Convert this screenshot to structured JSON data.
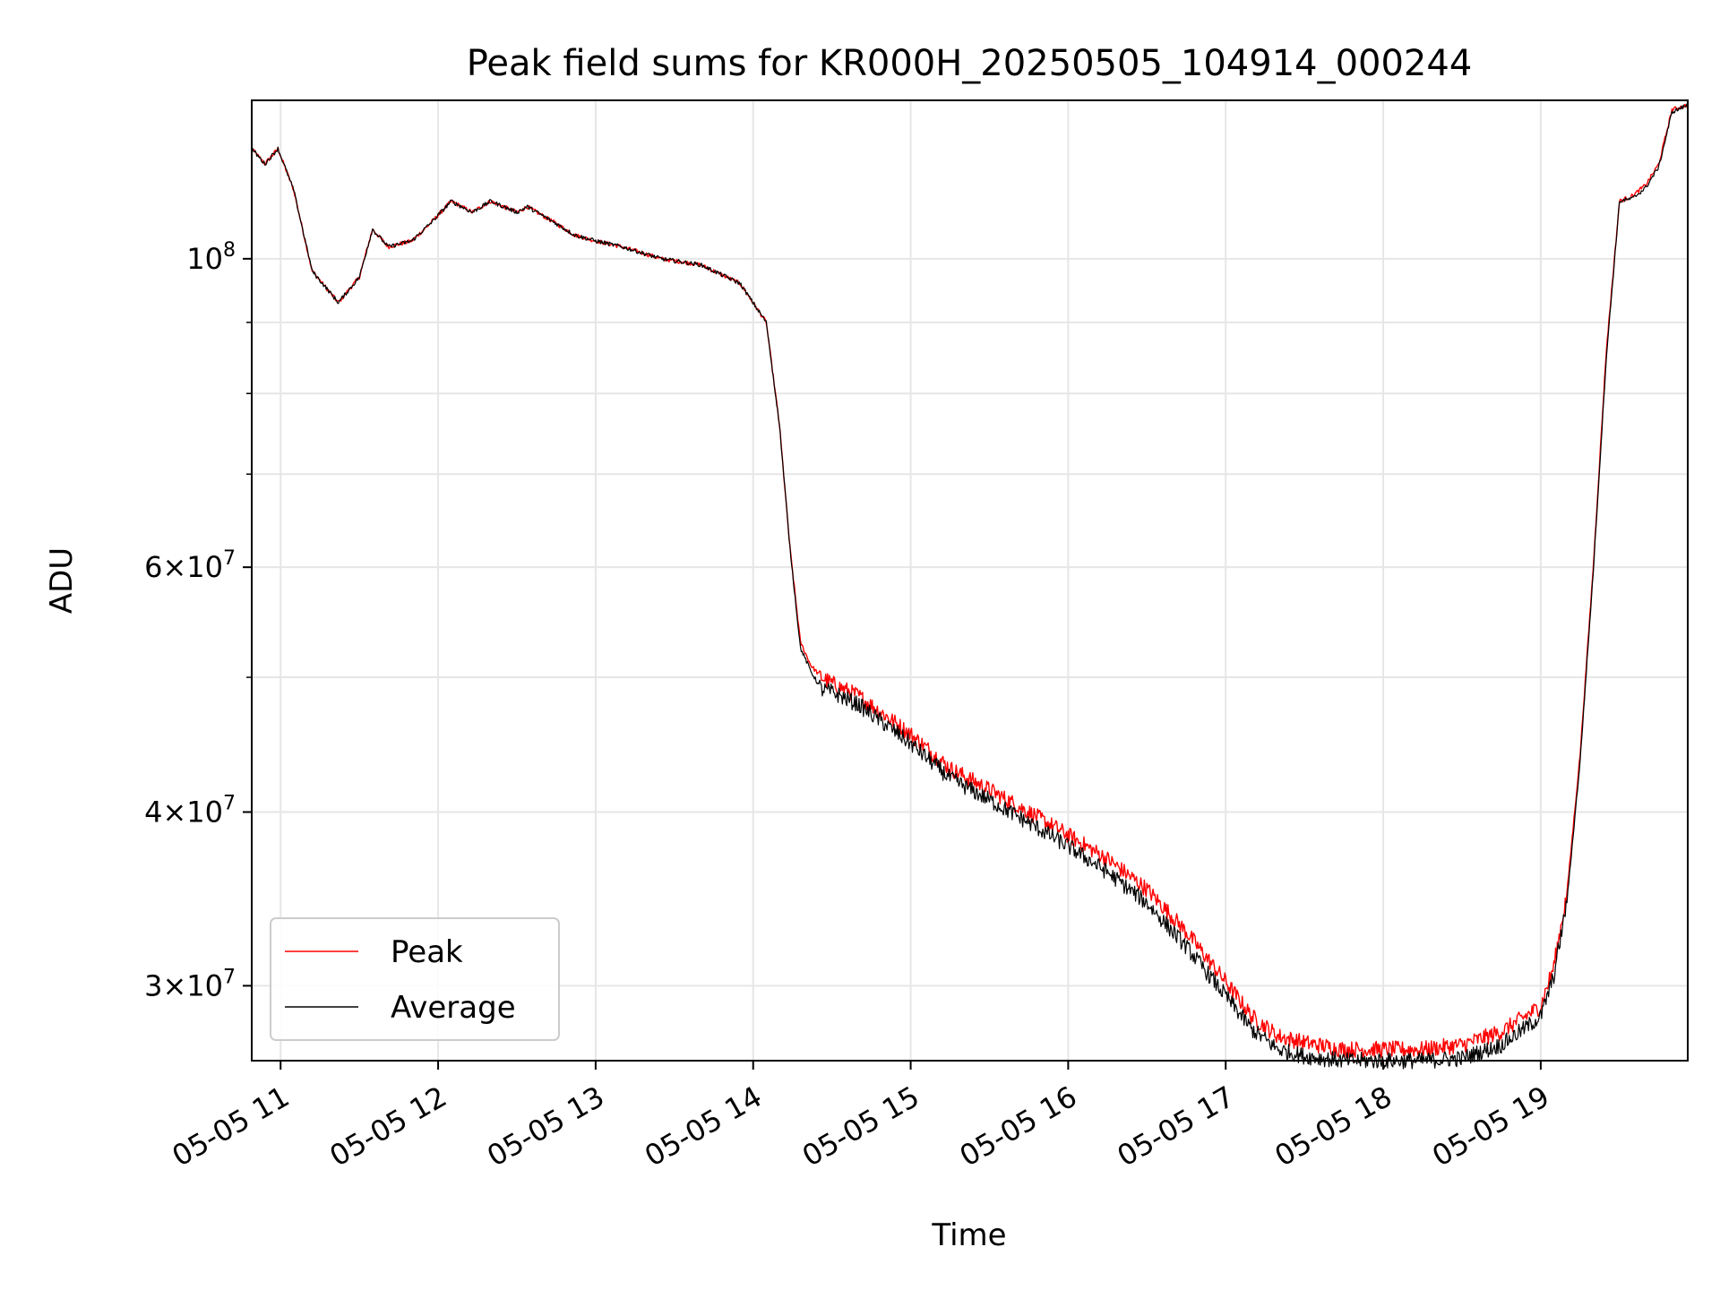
{
  "chart_data": {
    "type": "line",
    "title": "Peak field sums for KR000H_20250505_104914_000244",
    "xlabel": "Time",
    "ylabel": "ADU",
    "yscale": "log",
    "xlim": [
      "2025-05-05 10:49",
      "2025-05-05 19:56"
    ],
    "ylim": [
      26500000,
      130000000
    ],
    "x_ticks": [
      "05-05 11",
      "05-05 12",
      "05-05 13",
      "05-05 14",
      "05-05 15",
      "05-05 16",
      "05-05 17",
      "05-05 18",
      "05-05 19"
    ],
    "y_tick_values": [
      30000000,
      40000000,
      60000000,
      100000000
    ],
    "y_ticks": [
      {
        "base": "3",
        "exp": "7"
      },
      {
        "base": "4",
        "exp": "7"
      },
      {
        "base": "6",
        "exp": "7"
      },
      {
        "base": "",
        "exp": "8"
      }
    ],
    "y_minor_tick_values": [
      50000000,
      70000000,
      80000000,
      90000000
    ],
    "grid": true,
    "legend_position": "lower-left",
    "series": [
      {
        "name": "Peak",
        "color": "#ff0000",
        "x": [
          "2025-05-05 10:49",
          "2025-05-05 10:54",
          "2025-05-05 10:59",
          "2025-05-05 11:05",
          "2025-05-05 11:12",
          "2025-05-05 11:22",
          "2025-05-05 11:30",
          "2025-05-05 11:35",
          "2025-05-05 11:41",
          "2025-05-05 11:50",
          "2025-05-05 11:57",
          "2025-05-05 12:05",
          "2025-05-05 12:13",
          "2025-05-05 12:20",
          "2025-05-05 12:30",
          "2025-05-05 12:34",
          "2025-05-05 12:45",
          "2025-05-05 12:52",
          "2025-05-05 13:00",
          "2025-05-05 13:10",
          "2025-05-05 13:25",
          "2025-05-05 13:40",
          "2025-05-05 13:55",
          "2025-05-05 14:05",
          "2025-05-05 14:10",
          "2025-05-05 14:14",
          "2025-05-05 14:18",
          "2025-05-05 14:22",
          "2025-05-05 14:26",
          "2025-05-05 14:30",
          "2025-05-05 14:40",
          "2025-05-05 14:50",
          "2025-05-05 15:00",
          "2025-05-05 15:15",
          "2025-05-05 15:30",
          "2025-05-05 15:45",
          "2025-05-05 16:00",
          "2025-05-05 16:15",
          "2025-05-05 16:30",
          "2025-05-05 16:45",
          "2025-05-05 17:00",
          "2025-05-05 17:10",
          "2025-05-05 17:20",
          "2025-05-05 17:30",
          "2025-05-05 17:45",
          "2025-05-05 18:00",
          "2025-05-05 18:15",
          "2025-05-05 18:30",
          "2025-05-05 18:45",
          "2025-05-05 19:00",
          "2025-05-05 19:05",
          "2025-05-05 19:10",
          "2025-05-05 19:15",
          "2025-05-05 19:20",
          "2025-05-05 19:25",
          "2025-05-05 19:30",
          "2025-05-05 19:35",
          "2025-05-05 19:40",
          "2025-05-05 19:45",
          "2025-05-05 19:50",
          "2025-05-05 19:56"
        ],
        "values": [
          120000000,
          117000000,
          120000000,
          112000000,
          98000000,
          93000000,
          97000000,
          105000000,
          102000000,
          103000000,
          106000000,
          110000000,
          108000000,
          110000000,
          108000000,
          109000000,
          106000000,
          104000000,
          103000000,
          102000000,
          100000000,
          99000000,
          96000000,
          90000000,
          76000000,
          62000000,
          53000000,
          51000000,
          50000000,
          49500000,
          48500000,
          47000000,
          45500000,
          43000000,
          41500000,
          40000000,
          38500000,
          37000000,
          35200000,
          32800000,
          30200000,
          28500000,
          27600000,
          27300000,
          27000000,
          27000000,
          27000000,
          27200000,
          27800000,
          29000000,
          31000000,
          35000000,
          44000000,
          60000000,
          86000000,
          110000000,
          111000000,
          113000000,
          117000000,
          128000000,
          129000000
        ]
      },
      {
        "name": "Average",
        "color": "#000000",
        "x": [
          "2025-05-05 10:49",
          "2025-05-05 10:54",
          "2025-05-05 10:59",
          "2025-05-05 11:05",
          "2025-05-05 11:12",
          "2025-05-05 11:22",
          "2025-05-05 11:30",
          "2025-05-05 11:35",
          "2025-05-05 11:41",
          "2025-05-05 11:50",
          "2025-05-05 11:57",
          "2025-05-05 12:05",
          "2025-05-05 12:13",
          "2025-05-05 12:20",
          "2025-05-05 12:30",
          "2025-05-05 12:34",
          "2025-05-05 12:45",
          "2025-05-05 12:52",
          "2025-05-05 13:00",
          "2025-05-05 13:10",
          "2025-05-05 13:25",
          "2025-05-05 13:40",
          "2025-05-05 13:55",
          "2025-05-05 14:05",
          "2025-05-05 14:10",
          "2025-05-05 14:14",
          "2025-05-05 14:18",
          "2025-05-05 14:22",
          "2025-05-05 14:26",
          "2025-05-05 14:30",
          "2025-05-05 14:40",
          "2025-05-05 14:50",
          "2025-05-05 15:00",
          "2025-05-05 15:15",
          "2025-05-05 15:30",
          "2025-05-05 15:45",
          "2025-05-05 16:00",
          "2025-05-05 16:15",
          "2025-05-05 16:30",
          "2025-05-05 16:45",
          "2025-05-05 17:00",
          "2025-05-05 17:10",
          "2025-05-05 17:20",
          "2025-05-05 17:30",
          "2025-05-05 17:45",
          "2025-05-05 18:00",
          "2025-05-05 18:15",
          "2025-05-05 18:30",
          "2025-05-05 18:45",
          "2025-05-05 19:00",
          "2025-05-05 19:05",
          "2025-05-05 19:10",
          "2025-05-05 19:15",
          "2025-05-05 19:20",
          "2025-05-05 19:25",
          "2025-05-05 19:30",
          "2025-05-05 19:35",
          "2025-05-05 19:40",
          "2025-05-05 19:45",
          "2025-05-05 19:50",
          "2025-05-05 19:56"
        ],
        "values": [
          120000000,
          117000000,
          120000000,
          112000000,
          98000000,
          93000000,
          97000000,
          105000000,
          102000000,
          103000000,
          106000000,
          110000000,
          108000000,
          110000000,
          108000000,
          109000000,
          106000000,
          104000000,
          103000000,
          102000000,
          100000000,
          99000000,
          96000000,
          90000000,
          76000000,
          62000000,
          52500000,
          50500000,
          49000000,
          48800000,
          47800000,
          46300000,
          44800000,
          42300000,
          40800000,
          39300000,
          37800000,
          36200000,
          34400000,
          32000000,
          29500000,
          27900000,
          27000000,
          26700000,
          26500000,
          26500000,
          26500000,
          26600000,
          27200000,
          28500000,
          30500000,
          34500000,
          43500000,
          59500000,
          85000000,
          110000000,
          110500000,
          112500000,
          116500000,
          127500000,
          129000000
        ]
      }
    ]
  }
}
